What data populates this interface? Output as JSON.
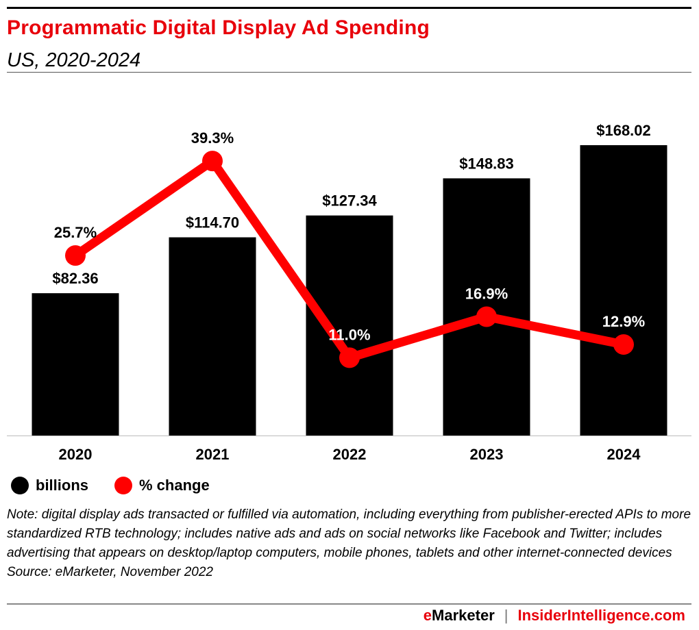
{
  "title": "Programmatic Digital Display Ad Spending",
  "subtitle": "US, 2020-2024",
  "chart_data": {
    "type": "bar+line",
    "categories": [
      "2020",
      "2021",
      "2022",
      "2023",
      "2024"
    ],
    "series": [
      {
        "name": "billions",
        "type": "bar",
        "color": "#000000",
        "values": [
          82.36,
          114.7,
          127.34,
          148.83,
          168.02
        ],
        "labels": [
          "$82.36",
          "$114.70",
          "$127.34",
          "$148.83",
          "$168.02"
        ]
      },
      {
        "name": "% change",
        "type": "line",
        "color": "#ff0000",
        "values": [
          25.7,
          39.3,
          11.0,
          16.9,
          12.9
        ],
        "labels": [
          "25.7%",
          "39.3%",
          "11.0%",
          "16.9%",
          "12.9%"
        ]
      }
    ],
    "grid": false,
    "legend": "bottom-left"
  },
  "legend": [
    {
      "label": "billions",
      "color": "#000000"
    },
    {
      "label": "% change",
      "color": "#ff0000"
    }
  ],
  "note": "Note: digital display ads transacted or fulfilled via automation, including everything from publisher-erected APIs to more standardized RTB technology; includes native ads and ads on social networks like Facebook and Twitter; includes advertising that appears on desktop/laptop computers, mobile phones, tablets and other internet-connected devices",
  "source": "Source: eMarketer, November 2022",
  "footer": {
    "brand_e": "e",
    "brand_rest": "Marketer",
    "separator": "|",
    "site": "InsiderIntelligence.com"
  }
}
